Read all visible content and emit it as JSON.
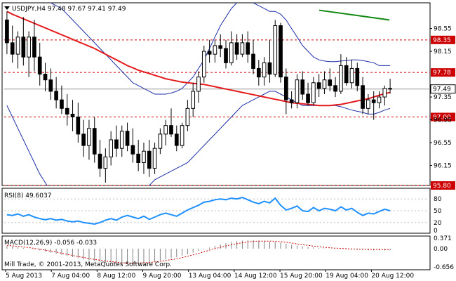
{
  "chart_data": {
    "type": "candlestick",
    "colors": {
      "background": "#ffffff",
      "candle": "#000000",
      "bollinger": "#1f2fa8",
      "moving_average": "#e41a1c",
      "level_line": "#cc0000",
      "current_price_bg": "#ffffff",
      "trend_line": "#118811",
      "rsi": "#1e90ff",
      "macd": "#cc0000",
      "grid": "#c0c0c0"
    },
    "main": {
      "header": "USDJPY,H4  97.48 97.67 97.41 97.49",
      "ylim": [
        95.8,
        99.0
      ],
      "y_ticks": [
        "98.55",
        "98.15",
        "97.35",
        "96.95",
        "96.55",
        "96.15"
      ],
      "levels": [
        {
          "value": 98.35,
          "label": "98.35"
        },
        {
          "value": 97.78,
          "label": "97.78"
        },
        {
          "value": 97.0,
          "label": "97.00"
        },
        {
          "value": 95.8,
          "label": "95.80"
        }
      ],
      "current_price": {
        "value": 97.49,
        "label": "97.49"
      },
      "candles": [
        [
          98.7,
          98.85,
          98.1,
          98.3
        ],
        [
          98.3,
          98.6,
          97.95,
          98.1
        ],
        [
          98.1,
          98.5,
          97.85,
          98.4
        ],
        [
          98.4,
          98.75,
          97.9,
          98.05
        ],
        [
          98.05,
          98.5,
          97.7,
          98.4
        ],
        [
          98.4,
          98.7,
          97.8,
          98.05
        ],
        [
          98.05,
          98.3,
          97.55,
          97.75
        ],
        [
          97.75,
          97.95,
          97.45,
          97.65
        ],
        [
          97.65,
          97.85,
          97.3,
          97.45
        ],
        [
          97.45,
          97.7,
          97.15,
          97.3
        ],
        [
          97.3,
          97.55,
          97.05,
          97.15
        ],
        [
          97.15,
          97.4,
          96.85,
          97.05
        ],
        [
          97.05,
          97.3,
          96.75,
          97.0
        ],
        [
          97.0,
          97.25,
          96.55,
          96.7
        ],
        [
          96.7,
          96.95,
          96.3,
          96.5
        ],
        [
          96.5,
          96.95,
          96.25,
          96.8
        ],
        [
          96.8,
          97.0,
          96.2,
          96.35
        ],
        [
          96.35,
          96.6,
          95.95,
          96.1
        ],
        [
          96.1,
          96.45,
          95.85,
          96.3
        ],
        [
          96.3,
          96.75,
          96.15,
          96.6
        ],
        [
          96.6,
          96.85,
          96.3,
          96.45
        ],
        [
          96.45,
          96.85,
          96.3,
          96.75
        ],
        [
          96.75,
          96.9,
          96.4,
          96.5
        ],
        [
          96.5,
          96.8,
          96.2,
          96.35
        ],
        [
          96.35,
          96.6,
          96.05,
          96.2
        ],
        [
          96.2,
          96.55,
          96.0,
          96.4
        ],
        [
          96.4,
          96.6,
          95.95,
          96.1
        ],
        [
          96.1,
          96.55,
          96.0,
          96.45
        ],
        [
          96.45,
          96.8,
          96.35,
          96.7
        ],
        [
          96.7,
          96.95,
          96.5,
          96.85
        ],
        [
          96.85,
          97.15,
          96.65,
          96.7
        ],
        [
          96.7,
          96.85,
          96.4,
          96.5
        ],
        [
          96.5,
          96.9,
          96.45,
          96.85
        ],
        [
          96.85,
          97.3,
          96.75,
          97.15
        ],
        [
          97.15,
          97.6,
          97.0,
          97.45
        ],
        [
          97.45,
          97.8,
          97.25,
          97.7
        ],
        [
          97.7,
          98.25,
          97.6,
          98.15
        ],
        [
          98.15,
          98.35,
          97.95,
          98.1
        ],
        [
          98.1,
          98.35,
          97.95,
          98.25
        ],
        [
          98.25,
          98.45,
          98.05,
          98.2
        ],
        [
          98.2,
          98.35,
          97.85,
          97.95
        ],
        [
          97.95,
          98.5,
          97.9,
          98.3
        ],
        [
          98.3,
          98.45,
          98.0,
          98.1
        ],
        [
          98.1,
          98.45,
          98.05,
          98.3
        ],
        [
          98.3,
          98.5,
          97.95,
          98.1
        ],
        [
          98.1,
          98.35,
          97.75,
          97.85
        ],
        [
          97.85,
          98.0,
          97.55,
          97.7
        ],
        [
          97.7,
          98.05,
          97.55,
          97.95
        ],
        [
          97.95,
          98.35,
          97.6,
          97.75
        ],
        [
          97.75,
          98.7,
          97.7,
          98.6
        ],
        [
          98.6,
          98.65,
          97.6,
          97.7
        ],
        [
          97.7,
          97.85,
          97.05,
          97.3
        ],
        [
          97.3,
          97.45,
          97.15,
          97.25
        ],
        [
          97.25,
          97.75,
          97.15,
          97.65
        ],
        [
          97.65,
          97.8,
          97.3,
          97.4
        ],
        [
          97.4,
          97.6,
          97.2,
          97.25
        ],
        [
          97.25,
          97.7,
          97.2,
          97.6
        ],
        [
          97.6,
          97.75,
          97.35,
          97.5
        ],
        [
          97.5,
          97.8,
          97.4,
          97.65
        ],
        [
          97.65,
          97.85,
          97.45,
          97.55
        ],
        [
          97.55,
          97.7,
          97.35,
          97.45
        ],
        [
          97.45,
          98.1,
          97.4,
          97.9
        ],
        [
          97.9,
          98.05,
          97.55,
          97.6
        ],
        [
          97.6,
          98.0,
          97.5,
          97.85
        ],
        [
          97.85,
          97.95,
          97.45,
          97.55
        ],
        [
          97.55,
          97.7,
          97.05,
          97.15
        ],
        [
          97.15,
          97.4,
          97.05,
          97.3
        ],
        [
          97.3,
          97.45,
          96.95,
          97.25
        ],
        [
          97.25,
          97.45,
          97.15,
          97.35
        ],
        [
          97.35,
          97.55,
          97.2,
          97.5
        ],
        [
          97.5,
          97.67,
          97.41,
          97.49
        ]
      ],
      "moving_average": [
        98.85,
        98.8,
        98.76,
        98.72,
        98.68,
        98.64,
        98.6,
        98.56,
        98.52,
        98.48,
        98.44,
        98.4,
        98.36,
        98.32,
        98.28,
        98.24,
        98.2,
        98.15,
        98.1,
        98.05,
        98.0,
        97.95,
        97.9,
        97.86,
        97.82,
        97.79,
        97.76,
        97.73,
        97.7,
        97.67,
        97.65,
        97.63,
        97.61,
        97.6,
        97.59,
        97.58,
        97.57,
        97.55,
        97.53,
        97.51,
        97.49,
        97.47,
        97.45,
        97.43,
        97.41,
        97.39,
        97.37,
        97.35,
        97.33,
        97.31,
        97.29,
        97.27,
        97.25,
        97.24,
        97.23,
        97.22,
        97.21,
        97.2,
        97.2,
        97.2,
        97.21,
        97.22,
        97.24,
        97.26,
        97.28,
        97.3,
        97.32,
        97.35,
        97.38,
        97.41,
        97.43
      ],
      "bb_upper": [
        99.3,
        99.3,
        99.28,
        99.25,
        99.2,
        99.15,
        99.1,
        99.05,
        99.0,
        98.95,
        98.9,
        98.8,
        98.7,
        98.6,
        98.5,
        98.4,
        98.3,
        98.2,
        98.1,
        98.0,
        97.9,
        97.8,
        97.7,
        97.6,
        97.55,
        97.5,
        97.45,
        97.4,
        97.4,
        97.4,
        97.42,
        97.45,
        97.5,
        97.6,
        97.7,
        97.85,
        98.0,
        98.2,
        98.4,
        98.6,
        98.75,
        98.9,
        99.0,
        99.05,
        99.05,
        99.0,
        98.95,
        98.9,
        98.85,
        98.85,
        98.8,
        98.7,
        98.55,
        98.4,
        98.25,
        98.15,
        98.05,
        98.0,
        97.98,
        97.97,
        97.97,
        97.98,
        97.99,
        98.0,
        98.0,
        97.99,
        97.97,
        97.95,
        97.9,
        97.9,
        97.9
      ],
      "bb_lower": [
        97.2,
        97.0,
        96.8,
        96.6,
        96.4,
        96.2,
        96.0,
        95.85,
        95.7,
        95.6,
        95.5,
        95.4,
        95.3,
        95.2,
        95.1,
        95.0,
        95.0,
        95.0,
        95.05,
        95.1,
        95.2,
        95.3,
        95.4,
        95.5,
        95.6,
        95.7,
        95.8,
        95.9,
        95.95,
        96.0,
        96.05,
        96.1,
        96.15,
        96.2,
        96.3,
        96.4,
        96.5,
        96.6,
        96.7,
        96.8,
        96.9,
        97.0,
        97.1,
        97.2,
        97.25,
        97.3,
        97.35,
        97.4,
        97.45,
        97.45,
        97.4,
        97.35,
        97.3,
        97.25,
        97.2,
        97.2,
        97.2,
        97.2,
        97.2,
        97.2,
        97.2,
        97.18,
        97.15,
        97.12,
        97.1,
        97.08,
        97.05,
        97.05,
        97.08,
        97.12,
        97.15
      ],
      "trend_line": {
        "from": 98.87,
        "to": 98.7
      }
    },
    "rsi": {
      "label": "RSI(8) 49.6037",
      "y_ticks": [
        "80",
        "50",
        "20",
        "0"
      ],
      "ylim": [
        0,
        100
      ],
      "values": [
        40,
        38,
        42,
        36,
        40,
        34,
        30,
        27,
        30,
        26,
        28,
        24,
        22,
        24,
        20,
        18,
        16,
        20,
        26,
        30,
        26,
        34,
        38,
        34,
        30,
        36,
        28,
        34,
        40,
        44,
        40,
        36,
        44,
        52,
        58,
        64,
        72,
        74,
        78,
        80,
        78,
        82,
        80,
        84,
        78,
        72,
        68,
        74,
        70,
        82,
        64,
        52,
        56,
        62,
        50,
        48,
        58,
        50,
        56,
        54,
        50,
        60,
        52,
        56,
        46,
        38,
        44,
        42,
        48,
        54,
        50
      ]
    },
    "macd": {
      "label": "MACD(12,26,9) -0.056 -0.033",
      "y_ticks": [
        "0.371",
        "0.00",
        "-0.656"
      ],
      "ylim": [
        -0.7,
        0.4
      ],
      "histogram": [
        0.1,
        0.08,
        0.05,
        0.03,
        0.0,
        -0.03,
        -0.06,
        -0.1,
        -0.14,
        -0.18,
        -0.22,
        -0.26,
        -0.3,
        -0.34,
        -0.38,
        -0.42,
        -0.45,
        -0.48,
        -0.5,
        -0.52,
        -0.53,
        -0.54,
        -0.54,
        -0.53,
        -0.52,
        -0.5,
        -0.48,
        -0.45,
        -0.42,
        -0.38,
        -0.34,
        -0.3,
        -0.25,
        -0.2,
        -0.14,
        -0.08,
        -0.02,
        0.04,
        0.1,
        0.15,
        0.2,
        0.24,
        0.27,
        0.29,
        0.3,
        0.3,
        0.29,
        0.27,
        0.25,
        0.24,
        0.22,
        0.18,
        0.14,
        0.11,
        0.08,
        0.06,
        0.04,
        0.02,
        0.01,
        0.0,
        -0.01,
        -0.01,
        -0.02,
        -0.03,
        -0.04,
        -0.05,
        -0.06,
        -0.06,
        -0.06,
        -0.06,
        -0.056
      ],
      "signal": [
        0.12,
        0.1,
        0.08,
        0.06,
        0.04,
        0.01,
        -0.02,
        -0.05,
        -0.09,
        -0.12,
        -0.16,
        -0.2,
        -0.24,
        -0.28,
        -0.31,
        -0.35,
        -0.38,
        -0.41,
        -0.44,
        -0.46,
        -0.48,
        -0.5,
        -0.51,
        -0.51,
        -0.51,
        -0.5,
        -0.49,
        -0.47,
        -0.45,
        -0.42,
        -0.39,
        -0.36,
        -0.32,
        -0.27,
        -0.22,
        -0.17,
        -0.11,
        -0.05,
        0.0,
        0.05,
        0.1,
        0.14,
        0.18,
        0.21,
        0.24,
        0.26,
        0.27,
        0.27,
        0.27,
        0.26,
        0.25,
        0.23,
        0.2,
        0.17,
        0.14,
        0.12,
        0.09,
        0.07,
        0.05,
        0.03,
        0.02,
        0.01,
        0.0,
        -0.01,
        -0.015,
        -0.02,
        -0.025,
        -0.028,
        -0.03,
        -0.032,
        -0.033
      ]
    },
    "x_labels": [
      "5 Aug 2013",
      "7 Aug 04:00",
      "8 Aug 12:00",
      "9 Aug 20:00",
      "13 Aug 04:00",
      "14 Aug 12:00",
      "15 Aug 20:00",
      "19 Aug 04:00",
      "20 Aug 12:00"
    ],
    "copyright": "Mill Trade, © 2001-2013, MetaQuotes Software Corp."
  }
}
